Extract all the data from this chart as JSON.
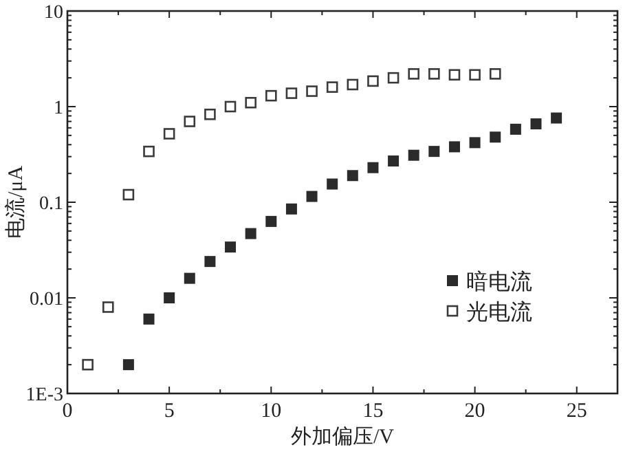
{
  "chart_data": {
    "type": "scatter",
    "xlabel": "外加偏压/V",
    "ylabel": "电流/μA",
    "log": "y",
    "xlim": [
      0,
      27
    ],
    "ylim": [
      0.001,
      10
    ],
    "xticks": [
      0,
      5,
      10,
      15,
      20,
      25
    ],
    "yticks": [
      {
        "value": 0.001,
        "label": "1E-3"
      },
      0.01,
      0.1,
      1,
      10
    ],
    "marker": "square",
    "legend": "bottom right",
    "grid": false,
    "series": [
      {
        "name": "暗电流",
        "color": "#2b2b2b",
        "x": [
          3,
          4,
          5,
          6,
          7,
          8,
          9,
          10,
          11,
          12,
          13,
          14,
          15,
          16,
          17,
          18,
          19,
          20,
          21,
          22,
          23,
          24
        ],
        "values": [
          0.002,
          0.006,
          0.01,
          0.016,
          0.024,
          0.034,
          0.047,
          0.063,
          0.085,
          0.115,
          0.155,
          0.19,
          0.23,
          0.27,
          0.31,
          0.34,
          0.38,
          0.42,
          0.48,
          0.58,
          0.66,
          0.76
        ]
      },
      {
        "name": "光电流",
        "color": "#3a3a3a",
        "x": [
          1,
          2,
          3,
          4,
          5,
          6,
          7,
          8,
          9,
          10,
          11,
          12,
          13,
          14,
          15,
          16,
          17,
          18,
          19,
          20,
          21
        ],
        "values": [
          0.002,
          0.008,
          0.12,
          0.34,
          0.52,
          0.7,
          0.83,
          1.0,
          1.1,
          1.3,
          1.38,
          1.45,
          1.6,
          1.7,
          1.85,
          2.0,
          2.2,
          2.2,
          2.15,
          2.15,
          2.2
        ]
      }
    ]
  }
}
